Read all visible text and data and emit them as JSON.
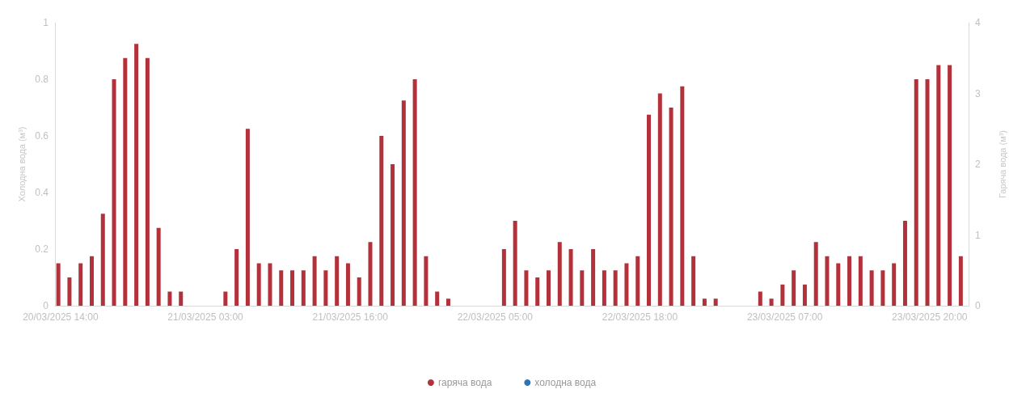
{
  "chart_data": {
    "type": "bar",
    "ylabel": "Холодна вода (м³)",
    "y2label": "Гаряча вода (м³)",
    "categories": [
      "20/03/2025 14:00",
      null,
      null,
      null,
      null,
      null,
      null,
      null,
      null,
      null,
      null,
      null,
      null,
      "21/03/2025 03:00",
      null,
      null,
      null,
      null,
      null,
      null,
      null,
      null,
      null,
      null,
      null,
      null,
      "21/03/2025 16:00",
      null,
      null,
      null,
      null,
      null,
      null,
      null,
      null,
      null,
      null,
      null,
      null,
      "22/03/2025 05:00",
      null,
      null,
      null,
      null,
      null,
      null,
      null,
      null,
      null,
      null,
      null,
      null,
      "22/03/2025 18:00",
      null,
      null,
      null,
      null,
      null,
      null,
      null,
      null,
      null,
      null,
      null,
      null,
      "23/03/2025 07:00",
      null,
      null,
      null,
      null,
      null,
      null,
      null,
      null,
      null,
      null,
      null,
      null,
      "23/03/2025 20:00",
      null,
      null,
      null
    ],
    "series": [
      {
        "name": "гаряча вода",
        "color": "#b3313a",
        "axis": "y2",
        "values": [
          0.6,
          0.4,
          0.6,
          0.7,
          1.3,
          3.2,
          3.5,
          3.7,
          3.5,
          1.1,
          0.2,
          0.2,
          0,
          0,
          0,
          0.2,
          0.8,
          2.5,
          0.6,
          0.6,
          0.5,
          0.5,
          0.5,
          0.7,
          0.5,
          0.7,
          0.6,
          0.4,
          0.9,
          2.4,
          2.0,
          2.9,
          3.2,
          0.7,
          0.2,
          0.1,
          0,
          0,
          0,
          0,
          0.8,
          1.2,
          0.5,
          0.4,
          0.5,
          0.9,
          0.8,
          0.5,
          0.8,
          0.5,
          0.5,
          0.6,
          0.7,
          2.7,
          3.0,
          2.8,
          3.1,
          0.7,
          0.1,
          0.1,
          0,
          0,
          0,
          0.2,
          0.1,
          0.3,
          0.5,
          0.3,
          0.9,
          0.7,
          0.6,
          0.7,
          0.7,
          0.5,
          0.5,
          0.6,
          1.2,
          3.2,
          3.2,
          3.4,
          3.4,
          0.7
        ]
      },
      {
        "name": "холодна вода",
        "color": "#2e75b6",
        "axis": "y",
        "values": [
          null,
          null,
          null,
          null,
          null,
          null,
          null,
          null,
          null,
          null,
          null,
          null,
          null,
          null,
          null,
          null,
          null,
          null,
          null,
          null,
          null,
          null,
          null,
          null,
          null,
          null,
          null,
          null,
          null,
          null,
          null,
          null,
          null,
          null,
          null,
          null,
          null,
          null,
          null,
          null,
          null,
          null,
          null,
          null,
          null,
          null,
          null,
          null,
          null,
          null,
          null,
          null,
          null,
          null,
          null,
          null,
          null,
          null,
          null,
          null,
          null,
          null,
          null,
          null,
          null,
          null,
          null,
          null,
          null,
          null,
          null,
          null,
          null,
          null,
          null,
          null,
          null,
          null,
          null,
          null,
          null,
          null
        ]
      }
    ],
    "ylim": [
      0,
      1
    ],
    "yticks": [
      0,
      0.2,
      0.4,
      0.6,
      0.8,
      1
    ],
    "y2lim": [
      0,
      4
    ],
    "y2ticks": [
      0,
      1,
      2,
      3,
      4
    ],
    "grid": false,
    "legend": "bottom"
  }
}
